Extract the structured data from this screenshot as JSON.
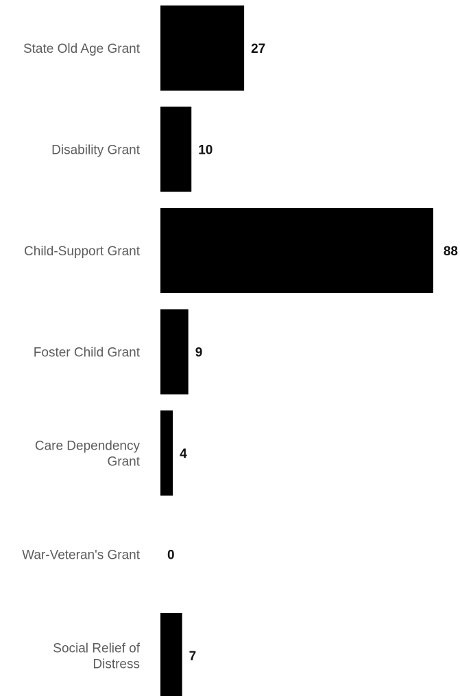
{
  "chart_data": {
    "type": "bar",
    "orientation": "horizontal",
    "categories": [
      "State Old Age Grant",
      "Disability Grant",
      "Child-Support Grant",
      "Foster Child Grant",
      "Care Dependency Grant",
      "War-Veteran's Grant",
      "Social Relief of Distress"
    ],
    "category_lines": [
      [
        "State Old Age Grant"
      ],
      [
        "Disability Grant"
      ],
      [
        "Child-Support Grant"
      ],
      [
        "Foster Child Grant"
      ],
      [
        "Care Dependency",
        "Grant"
      ],
      [
        "War-Veteran's Grant"
      ],
      [
        "Social Relief of",
        "Distress"
      ]
    ],
    "values": [
      27,
      10,
      88,
      9,
      4,
      0,
      7
    ],
    "data_labels": [
      "27",
      "10",
      "88",
      "9",
      "4",
      "0",
      "7"
    ],
    "title": "",
    "xlabel": "",
    "ylabel": "",
    "xlim": [
      0,
      88
    ],
    "grid": false,
    "legend": "none",
    "colors": {
      "bar": "#000000",
      "category_text": "#5c5c5c",
      "value_text": "#111111",
      "background": "#ffffff"
    }
  }
}
